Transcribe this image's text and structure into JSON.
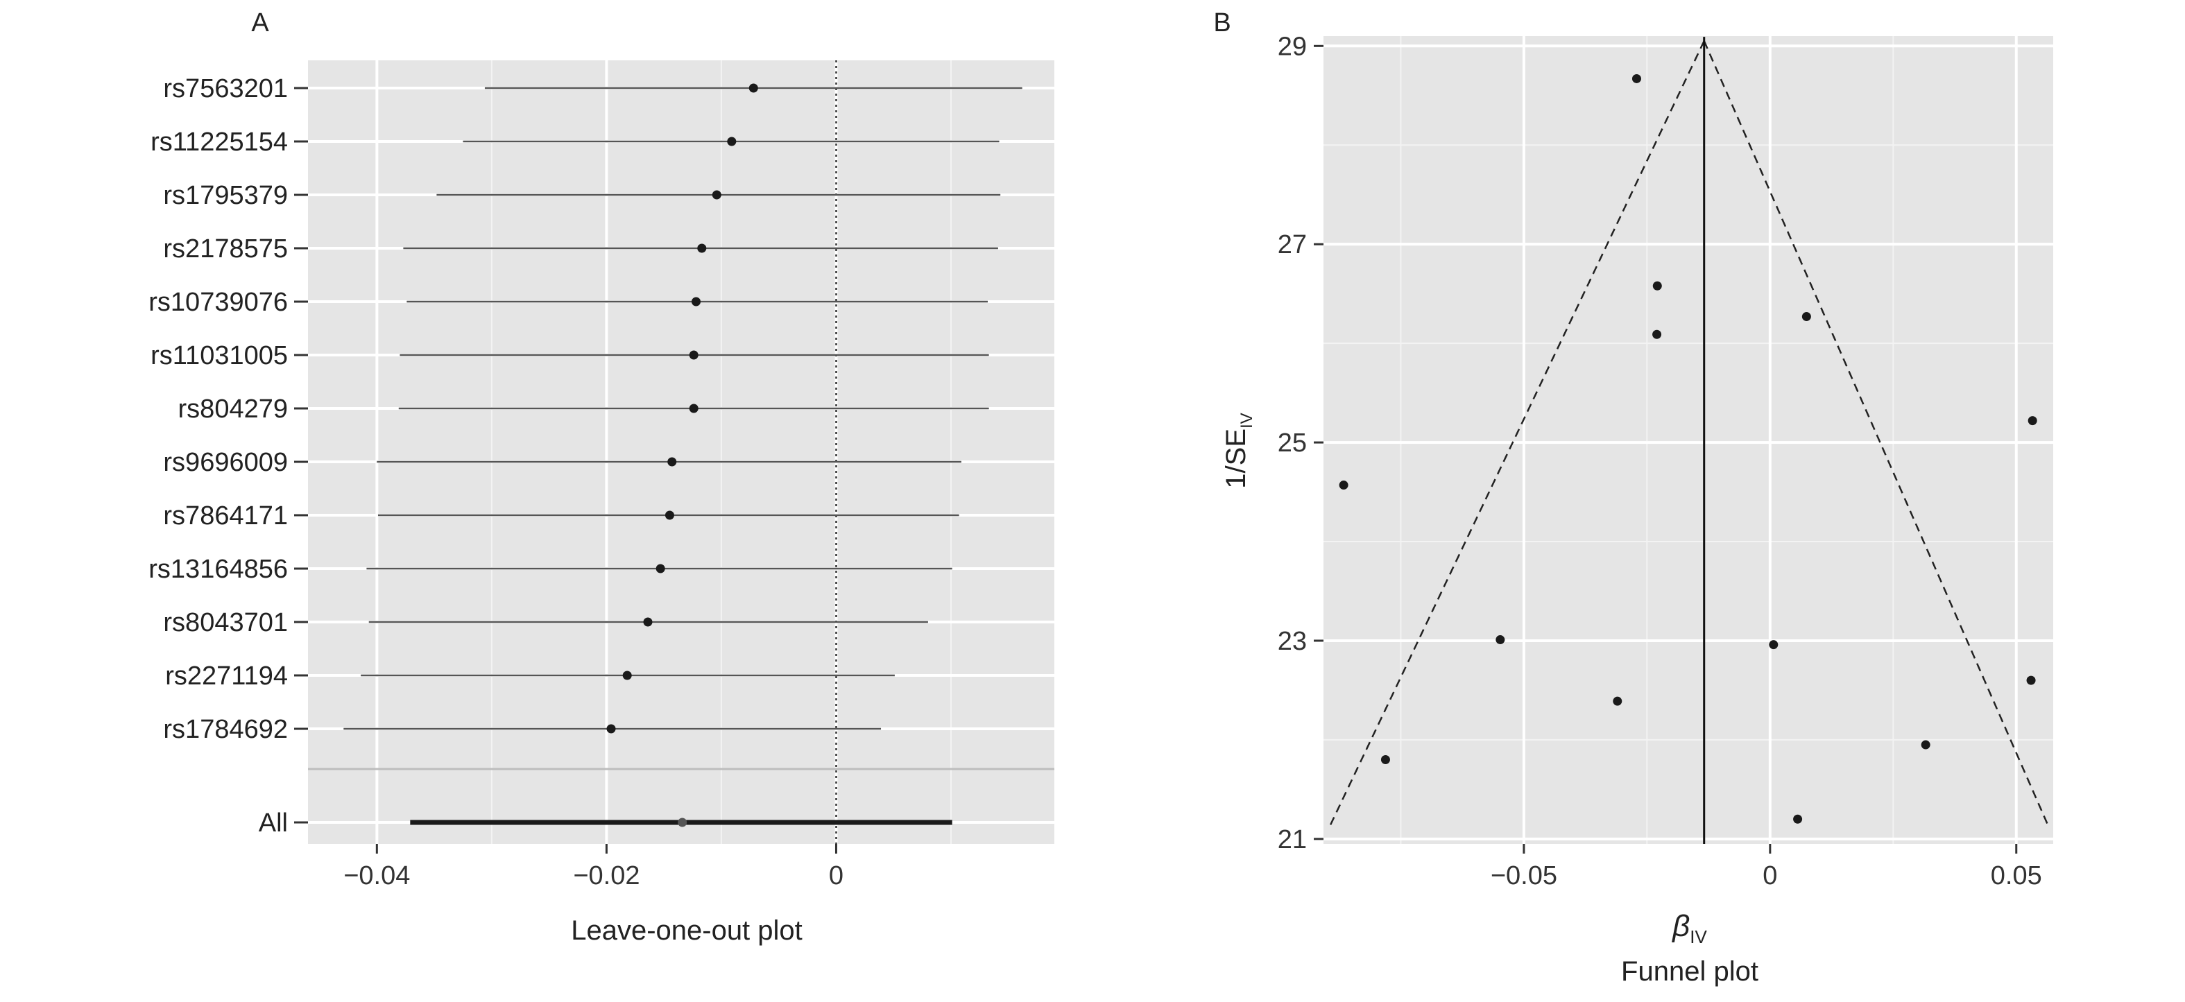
{
  "panels": {
    "left_label": "A",
    "right_label": "B"
  },
  "chart_data": [
    {
      "type": "forest",
      "panel_label": "A",
      "title": "",
      "xlabel": "Leave-one-out plot",
      "ylabel": "",
      "xlim": [
        -0.046,
        0.019
      ],
      "xticks": [
        -0.04,
        -0.02,
        0
      ],
      "xtick_labels": [
        "−0.04",
        "−0.02",
        "0"
      ],
      "reference_line": 0,
      "grid": true,
      "rows": [
        {
          "label": "rs7563201",
          "estimate": -0.0072,
          "lower": -0.0306,
          "upper": 0.0162
        },
        {
          "label": "rs11225154",
          "estimate": -0.0091,
          "lower": -0.0325,
          "upper": 0.0142
        },
        {
          "label": "rs1795379",
          "estimate": -0.0104,
          "lower": -0.0348,
          "upper": 0.0143
        },
        {
          "label": "rs2178575",
          "estimate": -0.0117,
          "lower": -0.0377,
          "upper": 0.0141
        },
        {
          "label": "rs10739076",
          "estimate": -0.0122,
          "lower": -0.0374,
          "upper": 0.0132
        },
        {
          "label": "rs11031005",
          "estimate": -0.0124,
          "lower": -0.038,
          "upper": 0.0133
        },
        {
          "label": "rs804279",
          "estimate": -0.0124,
          "lower": -0.0381,
          "upper": 0.0133
        },
        {
          "label": "rs9696009",
          "estimate": -0.0143,
          "lower": -0.04,
          "upper": 0.0109
        },
        {
          "label": "rs7864171",
          "estimate": -0.0145,
          "lower": -0.0399,
          "upper": 0.0107
        },
        {
          "label": "rs13164856",
          "estimate": -0.0153,
          "lower": -0.0409,
          "upper": 0.0101
        },
        {
          "label": "rs8043701",
          "estimate": -0.0164,
          "lower": -0.0407,
          "upper": 0.008
        },
        {
          "label": "rs2271194",
          "estimate": -0.0182,
          "lower": -0.0414,
          "upper": 0.0051
        },
        {
          "label": "rs1784692",
          "estimate": -0.0196,
          "lower": -0.0429,
          "upper": 0.0039
        }
      ],
      "overall": {
        "label": "All",
        "estimate": -0.0134,
        "lower": -0.0371,
        "upper": 0.0101
      }
    },
    {
      "type": "scatter",
      "panel_label": "B",
      "title": "",
      "xlabel": "β",
      "xlabel_sub": "IV",
      "subtitle": "Funnel plot",
      "ylabel": "1/SE",
      "ylabel_sub": "IV",
      "xlim": [
        -0.0907,
        0.0575
      ],
      "ylim": [
        20.95,
        29.1
      ],
      "xticks": [
        -0.05,
        0,
        0.05
      ],
      "xtick_labels": [
        "−0.05",
        "0",
        "0.05"
      ],
      "yticks": [
        21,
        23,
        25,
        27,
        29
      ],
      "ytick_labels": [
        "21",
        "23",
        "25",
        "27",
        "29"
      ],
      "grid": true,
      "points": [
        {
          "x": -0.0271,
          "y": 28.67
        },
        {
          "x": -0.0229,
          "y": 26.58
        },
        {
          "x": 0.0074,
          "y": 26.27
        },
        {
          "x": -0.023,
          "y": 26.09
        },
        {
          "x": 0.0533,
          "y": 25.22
        },
        {
          "x": -0.0866,
          "y": 24.57
        },
        {
          "x": -0.0548,
          "y": 23.01
        },
        {
          "x": 0.0007,
          "y": 22.96
        },
        {
          "x": 0.053,
          "y": 22.6
        },
        {
          "x": -0.031,
          "y": 22.39
        },
        {
          "x": 0.0316,
          "y": 21.95
        },
        {
          "x": -0.0781,
          "y": 21.8
        },
        {
          "x": 0.0056,
          "y": 21.2
        }
      ],
      "overall_estimate": -0.0134,
      "funnel": {
        "apex": [
          -0.0134,
          29.05
        ],
        "left_base": [
          -0.0895,
          21.12
        ],
        "right_base": [
          0.0566,
          21.12
        ]
      }
    }
  ]
}
